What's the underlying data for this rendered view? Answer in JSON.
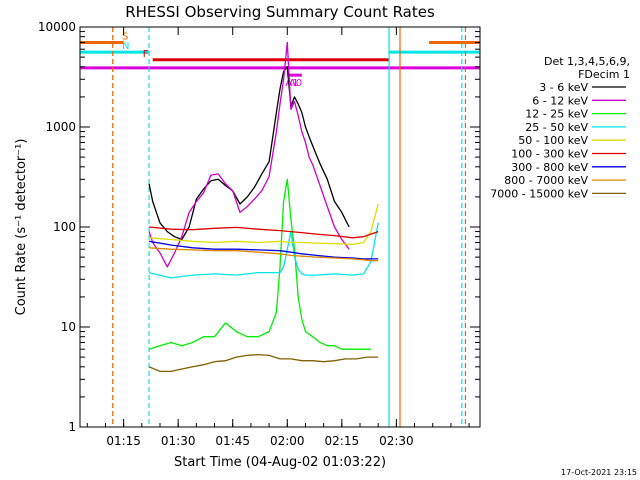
{
  "chart_data": {
    "type": "line",
    "title": "RHESSI Observing Summary Count Rates",
    "xlabel": "Start Time (04-Aug-02 01:03:22)",
    "ylabel": "Count Rate (s⁻¹ detector⁻¹)",
    "ylim": [
      1,
      10000
    ],
    "yscale": "log",
    "xlim_min": [
      0,
      110
    ],
    "x_ticks": [
      {
        "min": 12,
        "label": "01:15"
      },
      {
        "min": 27,
        "label": "01:30"
      },
      {
        "min": 42,
        "label": "01:45"
      },
      {
        "min": 57,
        "label": "02:00"
      },
      {
        "min": 72,
        "label": "02:15"
      },
      {
        "min": 87,
        "label": "02:30"
      }
    ],
    "y_ticks": [
      {
        "value": 1,
        "label": "1"
      },
      {
        "value": 10,
        "label": "10"
      },
      {
        "value": 100,
        "label": "100"
      },
      {
        "value": 1000,
        "label": "1000"
      },
      {
        "value": 10000,
        "label": "10000"
      }
    ],
    "legend": {
      "position": "right",
      "header1": "Det 1,3,4,5,6,9,",
      "header2": "FDecim 1"
    },
    "series": [
      {
        "name": "3 - 6 keV",
        "color": "#000000",
        "x": [
          19,
          20,
          22,
          24,
          26,
          28,
          30,
          32,
          34,
          36,
          38,
          40,
          42,
          44,
          46,
          48,
          50,
          52,
          54,
          55,
          56,
          57,
          58,
          59,
          60,
          61,
          62,
          63,
          64,
          66,
          68,
          70,
          72,
          74
        ],
        "y": [
          270,
          180,
          110,
          90,
          80,
          75,
          100,
          190,
          240,
          290,
          300,
          260,
          230,
          170,
          200,
          250,
          340,
          450,
          1400,
          2400,
          3600,
          4000,
          1600,
          2000,
          1700,
          1400,
          1000,
          800,
          650,
          430,
          300,
          180,
          140,
          100
        ]
      },
      {
        "name": "6 - 12 keV",
        "color": "#cc00cc",
        "x": [
          19,
          20,
          22,
          24,
          26,
          28,
          30,
          32,
          34,
          36,
          38,
          40,
          42,
          44,
          46,
          48,
          50,
          52,
          54,
          55,
          56,
          57,
          58,
          59,
          60,
          61,
          62,
          63,
          64,
          66,
          68,
          70,
          72,
          74
        ],
        "y": [
          90,
          70,
          55,
          40,
          55,
          80,
          140,
          180,
          220,
          330,
          340,
          270,
          230,
          140,
          160,
          190,
          230,
          320,
          900,
          1700,
          3000,
          7000,
          1500,
          1800,
          1300,
          900,
          700,
          500,
          420,
          260,
          160,
          100,
          75,
          60
        ]
      },
      {
        "name": "12 - 25 keV",
        "color": "#00ee00",
        "x": [
          19,
          22,
          25,
          28,
          31,
          34,
          37,
          40,
          43,
          46,
          49,
          52,
          54,
          55,
          56,
          57,
          58,
          59,
          60,
          61,
          62,
          64,
          66,
          68,
          70,
          72,
          74,
          76,
          78,
          80
        ],
        "y": [
          6,
          6.5,
          7,
          6.5,
          7,
          8,
          8,
          11,
          9,
          8,
          8,
          9,
          14,
          40,
          180,
          300,
          120,
          60,
          20,
          12,
          9,
          8,
          7,
          6.5,
          6.5,
          6,
          6,
          6,
          6,
          6
        ]
      },
      {
        "name": "25 - 50 keV",
        "color": "#00e5e5",
        "x": [
          19,
          25,
          31,
          37,
          43,
          49,
          55,
          56,
          57,
          58,
          59,
          60,
          61,
          62,
          65,
          70,
          75,
          78,
          80,
          82
        ],
        "y": [
          35,
          31,
          33,
          34,
          33,
          35,
          35,
          40,
          60,
          90,
          50,
          38,
          34,
          33,
          33,
          34,
          33,
          34,
          45,
          110
        ]
      },
      {
        "name": "50 - 100 keV",
        "color": "#dddd00",
        "x": [
          19,
          25,
          31,
          37,
          43,
          49,
          55,
          58,
          61,
          65,
          70,
          75,
          78,
          80,
          82
        ],
        "y": [
          78,
          75,
          72,
          70,
          72,
          70,
          72,
          70,
          70,
          69,
          68,
          67,
          70,
          90,
          170
        ]
      },
      {
        "name": "100 - 300 keV",
        "color": "#dd0000",
        "x": [
          19,
          25,
          31,
          37,
          43,
          49,
          55,
          58,
          61,
          65,
          70,
          75,
          78,
          80,
          82
        ],
        "y": [
          100,
          95,
          94,
          97,
          99,
          95,
          92,
          90,
          88,
          85,
          82,
          78,
          80,
          85,
          90
        ]
      },
      {
        "name": "300 - 800 keV",
        "color": "#0000dd",
        "x": [
          19,
          25,
          31,
          37,
          43,
          49,
          55,
          58,
          61,
          65,
          70,
          75,
          78,
          80,
          82
        ],
        "y": [
          72,
          66,
          62,
          60,
          60,
          59,
          58,
          56,
          54,
          52,
          50,
          49,
          48,
          48,
          48
        ]
      },
      {
        "name": "800 - 7000 keV",
        "color": "#dd8800",
        "x": [
          19,
          25,
          31,
          37,
          43,
          49,
          55,
          58,
          61,
          65,
          70,
          75,
          78,
          80,
          82
        ],
        "y": [
          62,
          60,
          59,
          58,
          58,
          56,
          54,
          52,
          51,
          50,
          49,
          48,
          47,
          46,
          46
        ]
      },
      {
        "name": "7000 - 15000 keV",
        "color": "#806000",
        "x": [
          19,
          22,
          25,
          28,
          31,
          34,
          37,
          40,
          43,
          46,
          49,
          52,
          55,
          58,
          61,
          64,
          67,
          70,
          73,
          76,
          79,
          82
        ],
        "y": [
          4,
          3.6,
          3.6,
          3.8,
          4,
          4.2,
          4.5,
          4.6,
          5,
          5.2,
          5.3,
          5.2,
          4.8,
          4.8,
          4.6,
          4.6,
          4.5,
          4.6,
          4.8,
          4.8,
          5,
          5
        ]
      }
    ],
    "state_bars": [
      {
        "label": "S",
        "color": "#ee6600",
        "segments": [
          [
            0,
            12
          ],
          [
            96,
            110
          ]
        ],
        "level": 7000
      },
      {
        "label": "N",
        "color": "#00e5e5",
        "segments": [
          [
            0,
            19
          ],
          [
            85,
            110
          ]
        ],
        "level": 5600
      },
      {
        "label": "F",
        "color": "#dd0000",
        "segments": [
          [
            20,
            85
          ]
        ],
        "level": 4700
      },
      {
        "label": "",
        "color": "#dd00dd",
        "segments": [
          [
            0,
            110
          ]
        ],
        "level": 3900
      },
      {
        "label": "A1",
        "color": "#dd00dd",
        "segments": [
          [
            57,
            58
          ]
        ],
        "level": 3300
      },
      {
        "label": "A0",
        "color": "#dd00dd",
        "segments": [
          [
            58,
            61
          ]
        ],
        "level": 3300
      }
    ],
    "vlines": [
      {
        "x": 9,
        "color": "#ee6600",
        "dashed": true
      },
      {
        "x": 19,
        "color": "#00e5e5",
        "dashed": true
      },
      {
        "x": 85,
        "color": "#00e5e5",
        "dashed": false
      },
      {
        "x": 88,
        "color": "#ee6600",
        "dashed": false
      },
      {
        "x": 105,
        "color": "#00e5e5",
        "dashed": true
      },
      {
        "x": 106,
        "color": "#ee6600",
        "dashed": true
      }
    ],
    "footer": "17-Oct-2021 23:15"
  }
}
